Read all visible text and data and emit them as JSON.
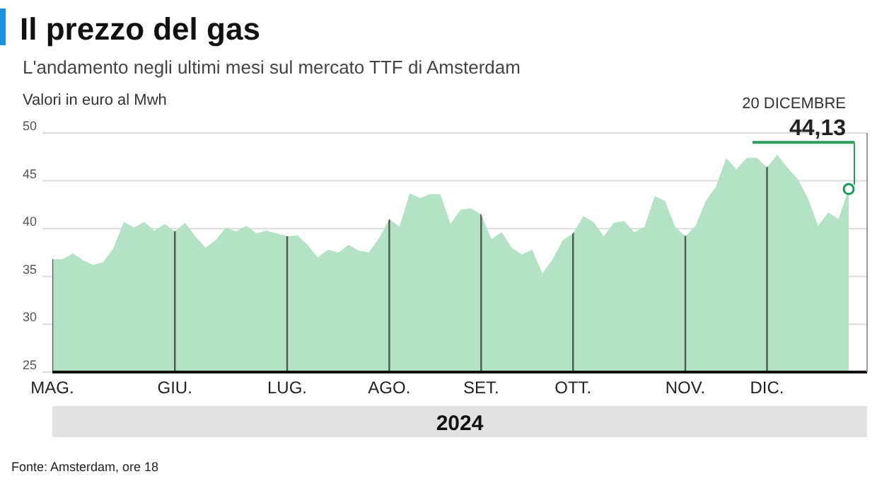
{
  "chart_data": {
    "type": "area",
    "title": "Il prezzo del gas",
    "subtitle": "L'andamento negli ultimi mesi sul mercato TTF di Amsterdam",
    "ylabel": "Valori in euro al Mwh",
    "xlabel": "2024",
    "categories": [
      "MAG.",
      null,
      null,
      null,
      null,
      null,
      null,
      null,
      null,
      null,
      null,
      null,
      "GIU.",
      null,
      null,
      null,
      null,
      null,
      null,
      null,
      null,
      null,
      null,
      "LUG.",
      null,
      null,
      null,
      null,
      null,
      null,
      null,
      null,
      null,
      "AGO.",
      null,
      null,
      null,
      null,
      null,
      null,
      null,
      null,
      "SET.",
      null,
      null,
      null,
      null,
      null,
      null,
      null,
      null,
      "OTT.",
      null,
      null,
      null,
      null,
      null,
      null,
      null,
      null,
      null,
      null,
      "NOV.",
      null,
      null,
      null,
      null,
      null,
      null,
      null,
      "DIC.",
      null,
      null,
      null,
      null,
      null,
      null,
      null,
      null
    ],
    "series": [
      {
        "color": "#b3e2c5",
        "values": [
          36.8,
          36.8,
          37.4,
          36.7,
          36.2,
          36.5,
          38.0,
          40.7,
          40.1,
          40.7,
          39.8,
          40.5,
          39.7,
          40.6,
          39.2,
          38.0,
          38.8,
          40.1,
          39.7,
          40.3,
          39.5,
          39.8,
          39.5,
          39.2,
          39.3,
          38.3,
          37.0,
          37.8,
          37.5,
          38.3,
          37.7,
          37.5,
          39.0,
          41.0,
          40.2,
          43.7,
          43.2,
          43.6,
          43.6,
          40.5,
          42.0,
          42.1,
          41.5,
          38.9,
          39.6,
          38.0,
          37.3,
          37.8,
          35.3,
          36.8,
          38.8,
          39.5,
          41.3,
          40.7,
          39.2,
          40.6,
          40.8,
          39.6,
          40.2,
          43.4,
          42.9,
          40.2,
          39.2,
          40.3,
          42.9,
          44.4,
          47.4,
          46.2,
          47.4,
          47.4,
          46.4,
          47.7,
          46.4,
          45.2,
          43.2,
          40.3,
          41.7,
          41.0,
          44.13
        ],
        "value_labels": [
          null,
          null,
          null,
          null,
          null,
          null,
          null,
          null,
          null,
          null,
          null,
          null,
          null,
          null,
          null,
          null,
          null,
          null,
          null,
          null,
          null,
          null,
          null,
          null,
          null,
          null,
          null,
          null,
          null,
          null,
          null,
          null,
          null,
          null,
          null,
          null,
          null,
          null,
          null,
          null,
          null,
          null,
          null,
          null,
          null,
          null,
          null,
          null,
          null,
          null,
          null,
          null,
          null,
          null,
          null,
          null,
          null,
          null,
          null,
          null,
          null,
          null,
          null,
          null,
          null,
          null,
          null,
          null,
          null,
          null,
          null,
          null,
          null,
          null,
          null,
          null,
          null,
          null,
          "44,13"
        ]
      }
    ],
    "ylim": [
      25,
      50
    ],
    "yticks": [
      25,
      30,
      35,
      40,
      45,
      50
    ],
    "grid": true,
    "marker": "none",
    "annotations": [
      "20 DICEMBRE",
      "Fonte: Amsterdam, ore 18"
    ]
  }
}
